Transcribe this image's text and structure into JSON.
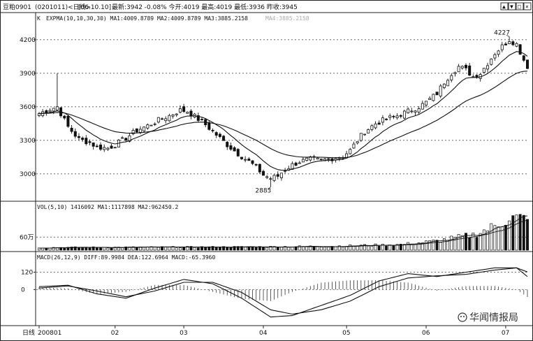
{
  "header": {
    "name": "豆粕0901",
    "code": "(0201011)<日线>",
    "date": "[06.10.10]",
    "quote": "最新:3942 -0.08%  今开:4019  最高:4019  最低:3936  昨收:3945"
  },
  "window_controls": [
    "▲",
    "▼",
    "□",
    "×"
  ],
  "main_panel": {
    "label": "K",
    "indicator": "EXPMA(10,10,30,30) MA1:4009.8789 MA2:4009.8789 MA3:3885.2158",
    "indicator_faded": "MA4:3885.2158",
    "ylim": [
      2780,
      4330
    ],
    "yticks": [
      4200,
      3900,
      3600,
      3300,
      3000
    ],
    "ytick_labels": [
      "4200",
      "3900",
      "3600",
      "3300",
      "3000"
    ],
    "annotations": [
      {
        "text": "4227",
        "x": 146,
        "y": 4227
      },
      {
        "text": "2883",
        "x": 76,
        "y": 2883
      }
    ]
  },
  "volume_panel": {
    "label": "VOL(5,10) 1416092 MA1:1117898 MA2:962450.2",
    "ylim": [
      0,
      1800000
    ],
    "yticks": [
      600000
    ],
    "ytick_labels": [
      "60万"
    ]
  },
  "macd_panel": {
    "label": "MACD(26,12,9) DIFF:89.9984 DEA:122.6964 MACD:-65.3960",
    "ylim": [
      -240,
      200
    ],
    "yticks": [
      120,
      0
    ],
    "ytick_labels": [
      "120",
      "0"
    ]
  },
  "xaxis": {
    "corner_label": "日线",
    "ticks": [
      {
        "label": "200801",
        "index": 0
      },
      {
        "label": "02",
        "index": 21
      },
      {
        "label": "03",
        "index": 40
      },
      {
        "label": "04",
        "index": 62
      },
      {
        "label": "05",
        "index": 85
      },
      {
        "label": "06",
        "index": 107
      },
      {
        "label": "07",
        "index": 129
      }
    ]
  },
  "watermark": "华闻情报局",
  "chart_data": {
    "type": "candlestick",
    "title": "豆粕0901 日线",
    "n_bars": 136,
    "anchors_close": [
      [
        0,
        3540
      ],
      [
        3,
        3580
      ],
      [
        5,
        3600
      ],
      [
        8,
        3420
      ],
      [
        11,
        3310
      ],
      [
        14,
        3280
      ],
      [
        16,
        3240
      ],
      [
        19,
        3230
      ],
      [
        21,
        3260
      ],
      [
        24,
        3320
      ],
      [
        27,
        3390
      ],
      [
        30,
        3430
      ],
      [
        33,
        3480
      ],
      [
        36,
        3520
      ],
      [
        39,
        3570
      ],
      [
        41,
        3560
      ],
      [
        44,
        3490
      ],
      [
        46,
        3440
      ],
      [
        49,
        3350
      ],
      [
        52,
        3260
      ],
      [
        55,
        3180
      ],
      [
        58,
        3110
      ],
      [
        60,
        3060
      ],
      [
        62,
        2990
      ],
      [
        64,
        2960
      ],
      [
        66,
        2980
      ],
      [
        68,
        3040
      ],
      [
        70,
        3080
      ],
      [
        72,
        3110
      ],
      [
        75,
        3130
      ],
      [
        78,
        3120
      ],
      [
        81,
        3140
      ],
      [
        84,
        3160
      ],
      [
        86,
        3210
      ],
      [
        88,
        3300
      ],
      [
        90,
        3380
      ],
      [
        93,
        3450
      ],
      [
        96,
        3490
      ],
      [
        99,
        3520
      ],
      [
        102,
        3560
      ],
      [
        105,
        3600
      ],
      [
        107,
        3640
      ],
      [
        110,
        3720
      ],
      [
        112,
        3820
      ],
      [
        114,
        3900
      ],
      [
        116,
        3960
      ],
      [
        118,
        3930
      ],
      [
        120,
        3870
      ],
      [
        122,
        3900
      ],
      [
        124,
        3990
      ],
      [
        126,
        4080
      ],
      [
        128,
        4140
      ],
      [
        130,
        4200
      ],
      [
        132,
        4160
      ],
      [
        134,
        4020
      ],
      [
        135,
        3942
      ]
    ],
    "candles_sample": {
      "first": {
        "open": 3520,
        "high": 3560,
        "low": 3500,
        "close": 3540
      },
      "last": {
        "open": 4019,
        "high": 4019,
        "low": 3936,
        "close": 3942
      }
    },
    "volume_anchors": [
      [
        0,
        120000
      ],
      [
        60,
        150000
      ],
      [
        80,
        180000
      ],
      [
        100,
        260000
      ],
      [
        110,
        420000
      ],
      [
        120,
        700000
      ],
      [
        126,
        1100000
      ],
      [
        130,
        1500000
      ],
      [
        135,
        1416092
      ]
    ],
    "macd_anchors_diff": [
      [
        0,
        20
      ],
      [
        8,
        30
      ],
      [
        16,
        -30
      ],
      [
        24,
        -60
      ],
      [
        32,
        10
      ],
      [
        40,
        70
      ],
      [
        48,
        40
      ],
      [
        56,
        -60
      ],
      [
        64,
        -190
      ],
      [
        70,
        -180
      ],
      [
        78,
        -110
      ],
      [
        86,
        -40
      ],
      [
        94,
        60
      ],
      [
        102,
        110
      ],
      [
        110,
        90
      ],
      [
        118,
        120
      ],
      [
        126,
        150
      ],
      [
        132,
        150
      ],
      [
        135,
        90
      ]
    ],
    "macd_anchors_dea": [
      [
        0,
        10
      ],
      [
        8,
        25
      ],
      [
        16,
        -10
      ],
      [
        24,
        -50
      ],
      [
        32,
        -10
      ],
      [
        40,
        50
      ],
      [
        48,
        50
      ],
      [
        56,
        -20
      ],
      [
        64,
        -140
      ],
      [
        70,
        -170
      ],
      [
        78,
        -140
      ],
      [
        86,
        -80
      ],
      [
        94,
        20
      ],
      [
        102,
        80
      ],
      [
        110,
        95
      ],
      [
        118,
        105
      ],
      [
        126,
        135
      ],
      [
        132,
        150
      ],
      [
        135,
        122
      ]
    ]
  }
}
